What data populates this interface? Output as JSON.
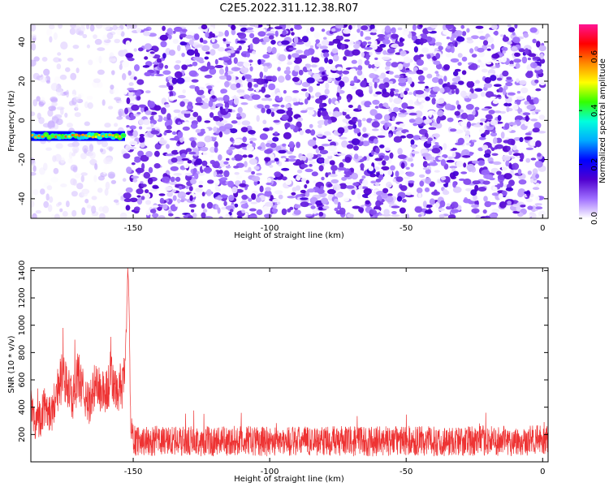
{
  "title": "C2E5.2022.311.12.38.R07",
  "chart_data": [
    {
      "type": "heatmap",
      "xlabel": "Height of straight line (km)",
      "ylabel": "Frequency (Hz)",
      "xlim": [
        -187.5,
        2
      ],
      "ylim": [
        -50,
        49
      ],
      "xticks": [
        -150,
        -100,
        -50,
        0
      ],
      "yticks": [
        -40,
        -20,
        0,
        20,
        40
      ],
      "colorbar": {
        "label": "Normalized spectral amplitude",
        "range": [
          0,
          0.72
        ],
        "ticks": [
          0.0,
          0.2,
          0.4,
          0.6
        ],
        "colormap": [
          "#ffffff",
          "#a070ff",
          "#5000d0",
          "#0000ff",
          "#00aaff",
          "#00ffdd",
          "#33ff00",
          "#ffff00",
          "#ff8800",
          "#ff0000",
          "#ff1493"
        ]
      },
      "regions": [
        {
          "x_range": [
            -187.5,
            -153
          ],
          "pattern": "sparse light patches, mostly white background"
        },
        {
          "x_range": [
            -153,
            0
          ],
          "pattern": "dense speckle noise, amplitude about 0.05-0.15"
        }
      ],
      "signal_band": {
        "x_range": [
          -187.5,
          -153
        ],
        "frequency": -8,
        "peak_amplitude": 0.6
      }
    },
    {
      "type": "line",
      "xlabel": "Height of straight line (km)",
      "ylabel": "SNR (10 * v/v)",
      "xlim": [
        -187.5,
        2
      ],
      "ylim": [
        0,
        1420
      ],
      "xticks": [
        -150,
        -100,
        -50,
        0
      ],
      "yticks": [
        200,
        400,
        600,
        800,
        1000,
        1200,
        1400
      ],
      "series": [
        {
          "color": "#ee3333",
          "x": [
            -187.5,
            -186,
            -184,
            -182,
            -180,
            -178,
            -176,
            -174,
            -172,
            -170,
            -168,
            -166,
            -164,
            -162,
            -160,
            -158,
            -156,
            -155,
            -154,
            -153,
            -152.5,
            -152,
            -151.5,
            -151,
            -150,
            -145,
            -140,
            -130,
            -120,
            -110,
            -100,
            -90,
            -80,
            -70,
            -60,
            -50,
            -40,
            -30,
            -20,
            -10,
            0,
            2
          ],
          "y": [
            380,
            300,
            330,
            420,
            350,
            520,
            620,
            540,
            470,
            640,
            480,
            420,
            560,
            520,
            500,
            620,
            480,
            560,
            520,
            720,
            950,
            1420,
            1150,
            330,
            160,
            150,
            155,
            150,
            150,
            155,
            150,
            150,
            155,
            150,
            150,
            155,
            150,
            150,
            155,
            150,
            160,
            160
          ],
          "spread": [
            150,
            150,
            150,
            150,
            150,
            170,
            190,
            170,
            160,
            190,
            160,
            150,
            180,
            170,
            170,
            190,
            160,
            170,
            170,
            120,
            60,
            20,
            80,
            120,
            110,
            110,
            110,
            110,
            110,
            110,
            110,
            110,
            110,
            110,
            110,
            110,
            110,
            110,
            110,
            110,
            110,
            110
          ]
        }
      ]
    }
  ]
}
